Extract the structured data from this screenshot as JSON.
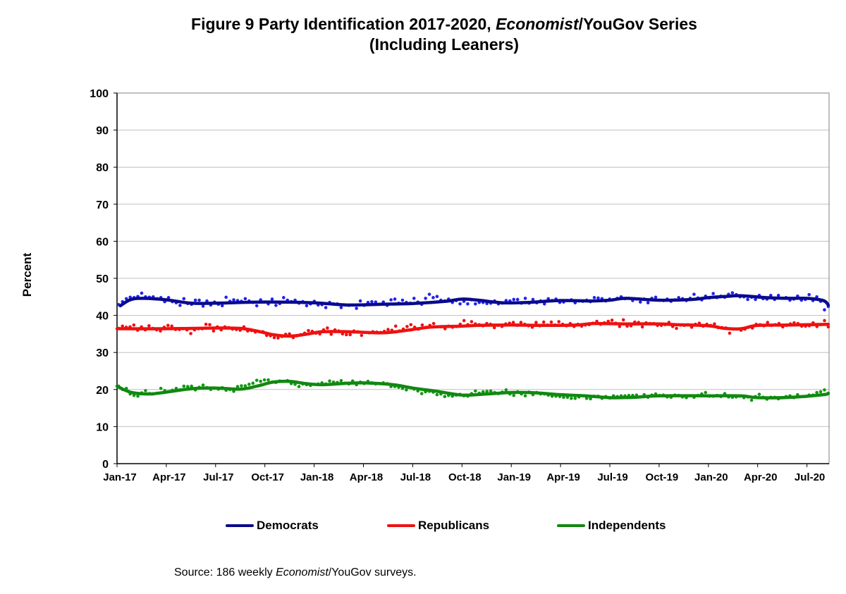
{
  "title": {
    "prefix": "Figure 9  Party Identification 2017-2020, ",
    "italic": "Economist",
    "suffix": "/YouGov Series",
    "line2": "(Including Leaners)"
  },
  "source": {
    "prefix": "Source:  186 weekly ",
    "italic": "Economist",
    "suffix": "/YouGov surveys."
  },
  "colors": {
    "democrats": "#0a0a8c",
    "democrats_dots": "#2222ee",
    "republicans": "#ee1111",
    "republicans_dots": "#ee1111",
    "independents": "#118811",
    "independents_dots": "#119911",
    "gridline": "#c0c0c0"
  },
  "chart_data": {
    "type": "scatter",
    "title": "Figure 9  Party Identification 2017-2020, Economist/YouGov Series (Including Leaners)",
    "xlabel": "",
    "ylabel": "Percent",
    "ylim": [
      0,
      100
    ],
    "yticks": [
      0,
      10,
      20,
      30,
      40,
      50,
      60,
      70,
      80,
      90,
      100
    ],
    "xlim": [
      0,
      43.3
    ],
    "grid": true,
    "legend_position": "bottom",
    "x_unit": "months since Jan-2017",
    "xticks": [
      {
        "x": 0,
        "label": "Jan-17"
      },
      {
        "x": 3,
        "label": "Apr-17"
      },
      {
        "x": 6,
        "label": "Jul-17"
      },
      {
        "x": 9,
        "label": "Oct-17"
      },
      {
        "x": 12,
        "label": "Jan-18"
      },
      {
        "x": 15,
        "label": "Apr-18"
      },
      {
        "x": 18,
        "label": "Jul-18"
      },
      {
        "x": 21,
        "label": "Oct-18"
      },
      {
        "x": 24,
        "label": "Jan-19"
      },
      {
        "x": 27,
        "label": "Apr-19"
      },
      {
        "x": 30,
        "label": "Jul-19"
      },
      {
        "x": 33,
        "label": "Oct-19"
      },
      {
        "x": 36,
        "label": "Jan-20"
      },
      {
        "x": 39,
        "label": "Apr-20"
      },
      {
        "x": 42,
        "label": "Jul-20"
      }
    ],
    "n_weekly_surveys": 186,
    "series": [
      {
        "name": "Democrats",
        "key": "democrats",
        "trend": [
          [
            0.2,
            42.6
          ],
          [
            0.8,
            44.2
          ],
          [
            1.5,
            44.6
          ],
          [
            3.0,
            44.2
          ],
          [
            4.5,
            43.3
          ],
          [
            6.0,
            43.3
          ],
          [
            9.0,
            43.6
          ],
          [
            12.0,
            43.4
          ],
          [
            14.0,
            42.8
          ],
          [
            16.0,
            43.0
          ],
          [
            18.0,
            43.2
          ],
          [
            20.0,
            43.8
          ],
          [
            21.0,
            44.4
          ],
          [
            22.0,
            44.1
          ],
          [
            23.5,
            43.4
          ],
          [
            25.0,
            43.5
          ],
          [
            27.0,
            44.0
          ],
          [
            29.0,
            43.9
          ],
          [
            30.0,
            44.1
          ],
          [
            31.0,
            44.6
          ],
          [
            33.0,
            44.1
          ],
          [
            35.0,
            44.3
          ],
          [
            36.0,
            44.8
          ],
          [
            37.0,
            45.1
          ],
          [
            38.0,
            45.3
          ],
          [
            39.5,
            44.8
          ],
          [
            41.0,
            44.6
          ],
          [
            42.0,
            44.6
          ],
          [
            43.0,
            44.0
          ],
          [
            43.3,
            42.8
          ]
        ],
        "weekly": [
          42.9,
          43.7,
          44.5,
          44.9,
          44.8,
          45.1,
          46.0,
          45.0,
          44.9,
          45.0,
          44.5,
          44.8,
          43.7,
          44.8,
          43.7,
          43.4,
          42.7,
          44.5,
          43.2,
          43.0,
          44.1,
          44.1,
          42.5,
          43.9,
          42.8,
          43.6,
          43.0,
          42.6,
          44.9,
          43.8,
          44.2,
          44.0,
          43.8,
          44.5,
          43.9,
          43.5,
          42.6,
          44.2,
          43.6,
          43.1,
          44.4,
          42.7,
          43.2,
          44.8,
          44.1,
          43.7,
          44.1,
          43.3,
          43.7,
          42.6,
          43.1,
          43.8,
          42.8,
          42.9,
          42.1,
          43.5,
          43.1,
          43.1,
          42.1,
          42.8,
          42.7,
          42.8,
          41.9,
          43.9,
          42.7,
          43.5,
          43.7,
          43.6,
          43.0,
          43.6,
          42.7,
          44.2,
          44.4,
          43.3,
          44.1,
          43.5,
          43.3,
          44.6,
          43.6,
          43.0,
          44.6,
          45.7,
          44.8,
          45.1,
          44.1,
          43.9,
          44.4,
          43.5,
          44.0,
          43.1,
          43.8,
          43.1,
          44.2,
          43.1,
          43.5,
          43.5,
          43.2,
          43.3,
          43.9,
          43.1,
          43.3,
          44.0,
          43.9,
          44.3,
          44.3,
          43.3,
          44.6,
          43.3,
          44.3,
          43.4,
          43.9,
          43.1,
          44.5,
          44.0,
          44.4,
          43.5,
          43.6,
          44.0,
          44.2,
          43.4,
          43.9,
          43.8,
          44.1,
          43.7,
          44.8,
          44.7,
          44.5,
          43.9,
          44.4,
          44.2,
          44.6,
          45.0,
          44.5,
          44.6,
          44.0,
          44.4,
          43.6,
          44.4,
          43.4,
          44.6,
          44.9,
          44.1,
          44.0,
          44.4,
          43.8,
          44.2,
          44.8,
          44.5,
          44.0,
          44.6,
          45.7,
          44.7,
          44.2,
          45.2,
          44.7,
          45.9,
          44.8,
          45.2,
          44.9,
          45.7,
          46.1,
          45.6,
          45.0,
          45.0,
          44.3,
          44.9,
          44.3,
          45.4,
          44.5,
          44.4,
          45.4,
          44.3,
          45.4,
          44.6,
          44.8,
          44.1,
          44.4,
          45.2,
          44.1,
          44.3,
          45.6,
          44.0,
          45.0,
          43.8,
          41.5,
          42.4
        ]
      },
      {
        "name": "Republicans",
        "key": "republicans",
        "trend": [
          [
            0.0,
            36.4
          ],
          [
            3.0,
            36.4
          ],
          [
            6.0,
            36.6
          ],
          [
            7.5,
            36.5
          ],
          [
            8.5,
            35.8
          ],
          [
            9.5,
            34.8
          ],
          [
            10.5,
            34.4
          ],
          [
            11.5,
            34.9
          ],
          [
            12.5,
            35.6
          ],
          [
            14.0,
            35.6
          ],
          [
            16.0,
            35.3
          ],
          [
            17.0,
            35.6
          ],
          [
            18.0,
            36.2
          ],
          [
            19.0,
            36.8
          ],
          [
            20.0,
            37.0
          ],
          [
            21.0,
            37.1
          ],
          [
            22.0,
            37.3
          ],
          [
            24.0,
            37.4
          ],
          [
            26.0,
            37.3
          ],
          [
            28.0,
            37.4
          ],
          [
            29.0,
            37.8
          ],
          [
            31.0,
            37.7
          ],
          [
            33.0,
            37.7
          ],
          [
            34.0,
            37.5
          ],
          [
            36.0,
            37.2
          ],
          [
            37.0,
            36.5
          ],
          [
            38.0,
            36.4
          ],
          [
            39.0,
            37.3
          ],
          [
            41.0,
            37.4
          ],
          [
            43.3,
            37.6
          ]
        ],
        "weekly": [
          36.5,
          37.1,
          36.8,
          36.9,
          37.4,
          36.0,
          36.9,
          36.1,
          37.2,
          36.5,
          36.1,
          35.8,
          36.8,
          37.3,
          37.1,
          36.2,
          36.2,
          36.4,
          36.1,
          35.1,
          36.1,
          36.4,
          36.4,
          37.6,
          37.5,
          35.8,
          36.9,
          36.1,
          36.9,
          36.7,
          36.3,
          36.2,
          36.0,
          36.9,
          35.8,
          35.9,
          35.5,
          35.6,
          35.6,
          34.6,
          34.5,
          34.0,
          33.9,
          34.3,
          34.9,
          35.0,
          34.0,
          34.5,
          34.8,
          35.2,
          35.9,
          35.7,
          35.2,
          35.0,
          36.1,
          36.6,
          34.9,
          36.1,
          35.8,
          35.0,
          34.8,
          34.8,
          35.8,
          35.6,
          34.6,
          35.4,
          35.3,
          35.6,
          35.5,
          35.4,
          35.7,
          36.2,
          36.0,
          37.1,
          35.8,
          36.3,
          37.0,
          37.5,
          36.8,
          36.3,
          37.4,
          36.8,
          37.3,
          37.8,
          36.9,
          36.9,
          36.4,
          37.1,
          36.8,
          37.0,
          37.6,
          38.6,
          37.5,
          38.3,
          37.7,
          37.5,
          37.2,
          37.8,
          37.6,
          36.7,
          37.3,
          37.0,
          37.7,
          37.9,
          38.1,
          37.3,
          38.1,
          37.6,
          37.2,
          36.8,
          38.1,
          37.2,
          38.2,
          37.4,
          38.2,
          37.4,
          38.3,
          37.6,
          37.2,
          37.8,
          37.0,
          37.6,
          37.1,
          37.4,
          37.5,
          37.9,
          38.4,
          37.6,
          38.0,
          38.4,
          38.7,
          37.9,
          37.0,
          38.8,
          37.1,
          37.2,
          38.2,
          38.1,
          36.9,
          38.0,
          37.8,
          37.8,
          37.3,
          37.3,
          37.5,
          38.1,
          37.0,
          36.5,
          37.4,
          37.3,
          37.5,
          36.8,
          37.6,
          37.9,
          37.1,
          37.6,
          37.3,
          37.7,
          36.7,
          36.7,
          36.6,
          35.2,
          36.3,
          36.3,
          36.0,
          36.3,
          36.8,
          36.6,
          37.6,
          37.5,
          37.2,
          38.1,
          37.3,
          37.5,
          37.8,
          36.9,
          37.3,
          37.7,
          38.0,
          37.8,
          37.1,
          37.1,
          37.2,
          38.0,
          37.0,
          37.5,
          38.6,
          36.9
        ]
      },
      {
        "name": "Independents",
        "key": "independents",
        "trend": [
          [
            0.0,
            20.9
          ],
          [
            0.5,
            19.8
          ],
          [
            1.0,
            19.1
          ],
          [
            2.0,
            18.8
          ],
          [
            3.0,
            19.3
          ],
          [
            4.5,
            20.2
          ],
          [
            6.0,
            20.4
          ],
          [
            7.5,
            20.1
          ],
          [
            8.5,
            20.9
          ],
          [
            9.5,
            22.0
          ],
          [
            10.5,
            22.2
          ],
          [
            11.5,
            21.6
          ],
          [
            12.5,
            21.3
          ],
          [
            14.0,
            21.7
          ],
          [
            15.0,
            21.8
          ],
          [
            16.0,
            21.6
          ],
          [
            17.0,
            21.2
          ],
          [
            18.0,
            20.4
          ],
          [
            19.5,
            19.5
          ],
          [
            21.0,
            18.5
          ],
          [
            22.5,
            18.8
          ],
          [
            24.0,
            19.2
          ],
          [
            25.5,
            19.1
          ],
          [
            27.0,
            18.6
          ],
          [
            28.5,
            18.3
          ],
          [
            30.0,
            17.8
          ],
          [
            31.5,
            17.9
          ],
          [
            33.0,
            18.3
          ],
          [
            36.0,
            18.3
          ],
          [
            38.0,
            18.3
          ],
          [
            39.0,
            17.8
          ],
          [
            41.0,
            17.9
          ],
          [
            43.0,
            18.6
          ],
          [
            43.3,
            19.0
          ]
        ],
        "weekly": [
          20.9,
          20.0,
          20.3,
          18.8,
          18.4,
          18.2,
          19.1,
          19.7,
          18.9,
          18.8,
          19.0,
          20.3,
          19.7,
          19.4,
          19.8,
          20.3,
          19.9,
          20.9,
          20.8,
          20.9,
          19.9,
          20.6,
          21.2,
          20.5,
          20.0,
          20.4,
          20.1,
          20.5,
          19.8,
          20.0,
          19.5,
          20.8,
          21.0,
          21.0,
          21.4,
          21.7,
          22.5,
          22.2,
          22.6,
          22.6,
          22.0,
          21.9,
          22.3,
          22.2,
          22.4,
          21.6,
          21.4,
          20.8,
          21.5,
          21.3,
          21.1,
          21.4,
          21.5,
          21.8,
          21.5,
          22.3,
          22.0,
          21.9,
          22.4,
          21.7,
          21.5,
          22.3,
          21.3,
          22.0,
          21.6,
          22.2,
          21.8,
          21.5,
          21.6,
          21.8,
          21.6,
          20.8,
          20.8,
          20.6,
          20.3,
          19.9,
          20.5,
          20.1,
          19.6,
          18.9,
          19.4,
          19.5,
          19.3,
          18.6,
          18.8,
          18.1,
          18.4,
          18.2,
          18.5,
          18.7,
          18.3,
          18.2,
          18.9,
          19.6,
          19.0,
          19.4,
          19.5,
          19.6,
          19.2,
          18.9,
          19.3,
          19.9,
          18.8,
          18.4,
          19.4,
          18.8,
          18.3,
          19.3,
          18.6,
          19.2,
          18.8,
          18.8,
          18.5,
          18.2,
          18.2,
          18.1,
          17.9,
          17.9,
          17.6,
          17.6,
          18.0,
          18.3,
          17.6,
          17.5,
          18.2,
          18.2,
          17.6,
          18.1,
          17.7,
          18.3,
          18.1,
          18.3,
          18.3,
          18.4,
          18.4,
          18.5,
          18.0,
          18.6,
          17.9,
          18.5,
          18.8,
          18.4,
          18.5,
          18.0,
          17.9,
          18.5,
          18.4,
          18.0,
          17.8,
          18.3,
          17.9,
          18.4,
          18.8,
          19.2,
          18.2,
          18.2,
          18.4,
          18.1,
          18.9,
          18.0,
          17.9,
          18.0,
          18.2,
          17.8,
          18.0,
          17.1,
          18.1,
          18.7,
          17.9,
          17.4,
          17.9,
          17.9,
          17.5,
          17.8,
          18.1,
          18.3,
          17.8,
          18.6,
          18.1,
          18.1,
          18.5,
          18.5,
          19.2,
          19.4,
          19.9,
          18.9
        ]
      }
    ]
  }
}
